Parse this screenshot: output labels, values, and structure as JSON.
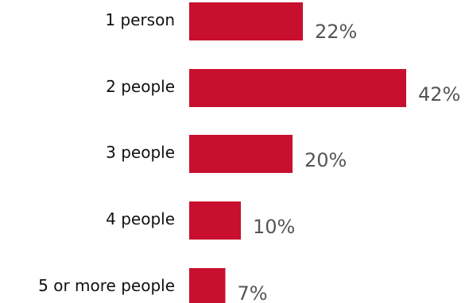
{
  "chart_data": {
    "type": "bar",
    "orientation": "horizontal",
    "title": "",
    "xlabel": "",
    "ylabel": "",
    "categories": [
      "1 person",
      "2 people",
      "3 people",
      "4 people",
      "5 or more people"
    ],
    "values": [
      22,
      42,
      20,
      10,
      7
    ],
    "value_labels": [
      "22%",
      "42%",
      "20%",
      "10%",
      "7%"
    ],
    "xlim": [
      0,
      42
    ],
    "grid": false,
    "legend": "none",
    "bar_color": "#c8102e",
    "value_label_color": "#555555",
    "category_label_color": "#111111"
  }
}
